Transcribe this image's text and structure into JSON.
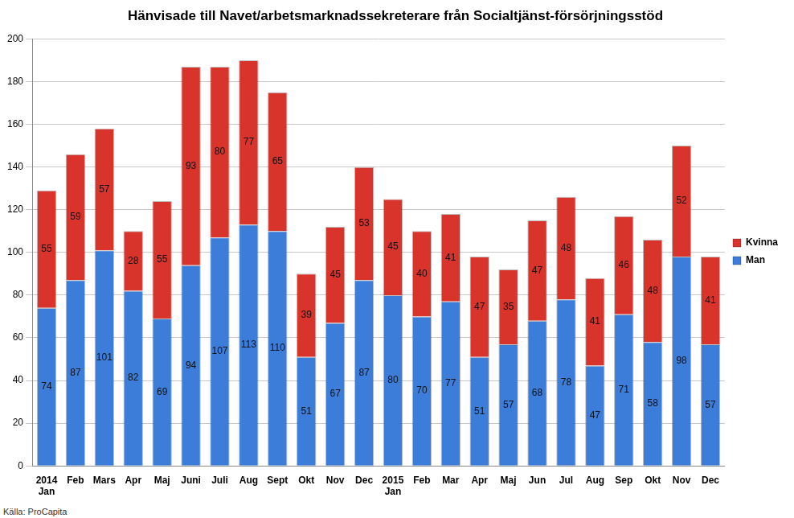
{
  "chart_data": {
    "type": "bar",
    "title": "Hänvisade till Navet/arbetsmarknadssekreterare från Socialtjänst-försörjningsstöd",
    "source": "Källa: ProCapita",
    "categories": [
      "2014 Jan",
      "Feb",
      "Mars",
      "Apr",
      "Maj",
      "Juni",
      "Juli",
      "Aug",
      "Sept",
      "Okt",
      "Nov",
      "Dec",
      "2015 Jan",
      "Feb",
      "Mar",
      "Apr",
      "Maj",
      "Jun",
      "Jul",
      "Aug",
      "Sep",
      "Okt",
      "Nov",
      "Dec"
    ],
    "series": [
      {
        "name": "Man",
        "color": "#3b7dd8",
        "values": [
          74,
          87,
          101,
          82,
          69,
          94,
          107,
          113,
          110,
          51,
          67,
          87,
          80,
          70,
          77,
          51,
          57,
          68,
          78,
          47,
          71,
          58,
          98,
          57
        ]
      },
      {
        "name": "Kvinna",
        "color": "#d8342c",
        "values": [
          55,
          59,
          57,
          28,
          55,
          93,
          80,
          77,
          65,
          39,
          45,
          53,
          45,
          40,
          41,
          47,
          35,
          47,
          48,
          41,
          46,
          48,
          52,
          41
        ]
      }
    ],
    "stacked": true,
    "data_labels": true,
    "legend": "right",
    "grid": true,
    "ylim": [
      0,
      200
    ],
    "yticks": [
      0,
      20,
      40,
      60,
      80,
      100,
      120,
      140,
      160,
      180,
      200
    ]
  }
}
